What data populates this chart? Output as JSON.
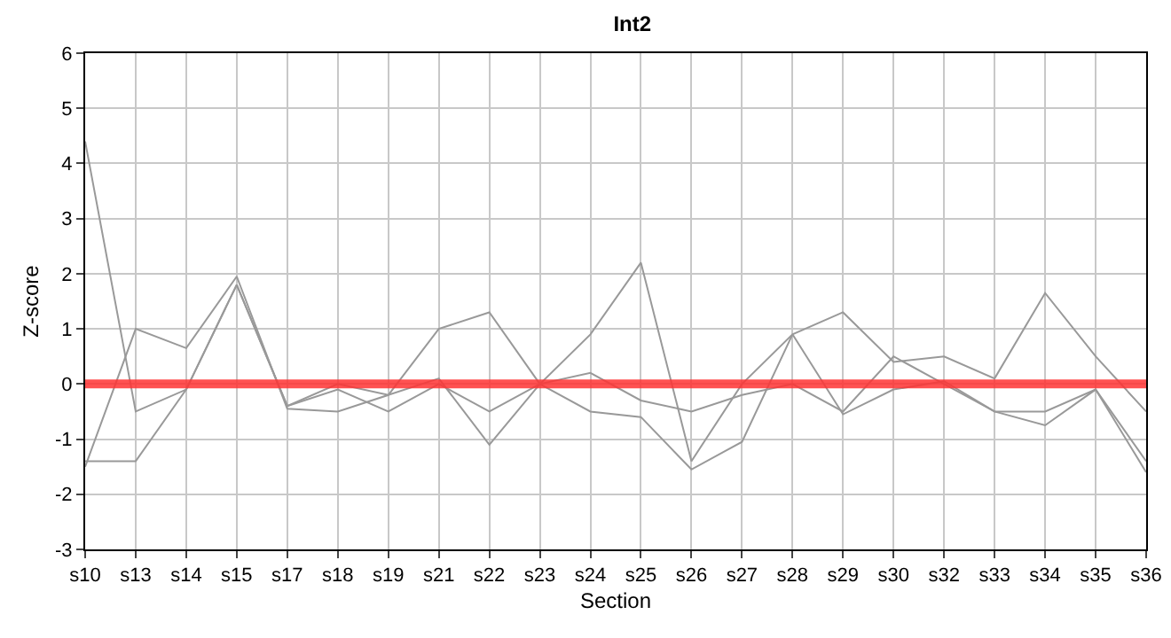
{
  "chart_data": {
    "type": "line",
    "title": "Int2",
    "xlabel": "Section",
    "ylabel": "Z-score",
    "categories": [
      "s10",
      "s13",
      "s14",
      "s15",
      "s17",
      "s18",
      "s19",
      "s21",
      "s22",
      "s23",
      "s24",
      "s25",
      "s26",
      "s27",
      "s28",
      "s29",
      "s30",
      "s32",
      "s33",
      "s34",
      "s35",
      "s36"
    ],
    "series": [
      {
        "color": "#999999",
        "values": [
          4.4,
          -0.5,
          -0.1,
          1.8,
          -0.4,
          0,
          -0.2,
          0.1,
          -1.1,
          0,
          0.2,
          -0.3,
          -0.5,
          -0.2,
          0,
          -0.5,
          0.5,
          0,
          -0.5,
          -0.75,
          -0.1,
          -1.6
        ]
      },
      {
        "color": "#999999",
        "values": [
          -1.4,
          -1.4,
          -0.1,
          1.8,
          -0.4,
          -0.1,
          -0.5,
          0,
          -0.5,
          0,
          -0.5,
          -0.6,
          -1.55,
          -1.05,
          0.9,
          -0.55,
          -0.1,
          0.05,
          -0.5,
          -0.5,
          -0.1,
          -1.4
        ]
      },
      {
        "color": "#999999",
        "values": [
          -1.5,
          1.0,
          0.65,
          1.95,
          -0.45,
          -0.5,
          -0.2,
          1.0,
          1.3,
          0,
          0.9,
          2.2,
          -1.4,
          0,
          0.9,
          1.3,
          0.4,
          0.5,
          0.1,
          1.65,
          0.5,
          -0.5
        ]
      },
      {
        "color": "#ff3333",
        "values": [
          0,
          0,
          0,
          0,
          0,
          0,
          0,
          0,
          0,
          0,
          0,
          0,
          0,
          0,
          0,
          0,
          0,
          0,
          0,
          0,
          0,
          0
        ]
      }
    ],
    "ylim": [
      -3,
      6
    ],
    "yticks": [
      -3,
      -2,
      -1,
      0,
      1,
      2,
      3,
      4,
      5,
      6
    ],
    "grid": true,
    "marker": "none",
    "line_style": "solid"
  }
}
